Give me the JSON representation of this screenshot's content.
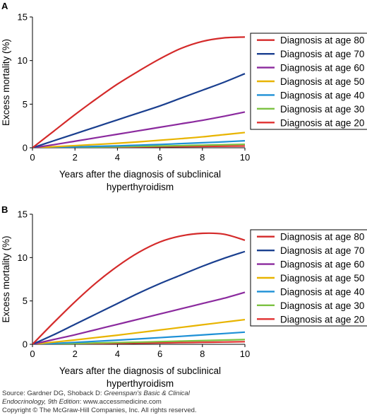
{
  "chart_data": [
    {
      "type": "line",
      "panel_label": "A",
      "xlabel_lines": [
        "Years after the diagnosis of subclinical",
        "hyperthyroidism"
      ],
      "ylabel": "Excess mortality (%)",
      "xlim": [
        0,
        10
      ],
      "ylim": [
        0,
        15
      ],
      "x_ticks": [
        0,
        2,
        4,
        6,
        8,
        10
      ],
      "y_ticks": [
        0,
        5,
        10,
        15
      ],
      "legend_position": "right",
      "series": [
        {
          "name": "Diagnosis at age 80",
          "color": "#d42a2a",
          "x": [
            0,
            1,
            2,
            3,
            4,
            5,
            6,
            7,
            8,
            9,
            10
          ],
          "y": [
            0,
            1.9,
            3.8,
            5.6,
            7.3,
            8.8,
            10.2,
            11.4,
            12.2,
            12.6,
            12.7
          ]
        },
        {
          "name": "Diagnosis at age 70",
          "color": "#1a3f8f",
          "x": [
            0,
            1,
            2,
            3,
            4,
            5,
            6,
            7,
            8,
            9,
            10
          ],
          "y": [
            0,
            0.8,
            1.6,
            2.4,
            3.2,
            4.0,
            4.8,
            5.7,
            6.6,
            7.5,
            8.5
          ]
        },
        {
          "name": "Diagnosis at age 60",
          "color": "#8b2a9e",
          "x": [
            0,
            1,
            2,
            3,
            4,
            5,
            6,
            7,
            8,
            9,
            10
          ],
          "y": [
            0,
            0.35,
            0.75,
            1.15,
            1.55,
            1.95,
            2.35,
            2.75,
            3.15,
            3.6,
            4.1
          ]
        },
        {
          "name": "Diagnosis at age 50",
          "color": "#e8b400",
          "x": [
            0,
            1,
            2,
            3,
            4,
            5,
            6,
            7,
            8,
            9,
            10
          ],
          "y": [
            0,
            0.12,
            0.25,
            0.38,
            0.52,
            0.68,
            0.86,
            1.05,
            1.25,
            1.5,
            1.75
          ]
        },
        {
          "name": "Diagnosis at age 40",
          "color": "#1e90d6",
          "x": [
            0,
            1,
            2,
            3,
            4,
            5,
            6,
            7,
            8,
            9,
            10
          ],
          "y": [
            0,
            0.05,
            0.1,
            0.16,
            0.22,
            0.3,
            0.38,
            0.48,
            0.58,
            0.68,
            0.8
          ]
        },
        {
          "name": "Diagnosis at age 30",
          "color": "#7cc242",
          "x": [
            0,
            1,
            2,
            3,
            4,
            5,
            6,
            7,
            8,
            9,
            10
          ],
          "y": [
            0,
            0.03,
            0.06,
            0.09,
            0.12,
            0.16,
            0.2,
            0.25,
            0.3,
            0.35,
            0.4
          ]
        },
        {
          "name": "Diagnosis at age 20",
          "color": "#e03030",
          "x": [
            0,
            1,
            2,
            3,
            4,
            5,
            6,
            7,
            8,
            9,
            10
          ],
          "y": [
            0,
            0.02,
            0.04,
            0.06,
            0.08,
            0.1,
            0.12,
            0.14,
            0.16,
            0.18,
            0.2
          ]
        }
      ]
    },
    {
      "type": "line",
      "panel_label": "B",
      "xlabel_lines": [
        "Years after the diagnosis of subclinical",
        "hyperthyroidism"
      ],
      "ylabel": "Excess mortality (%)",
      "xlim": [
        0,
        10
      ],
      "ylim": [
        0,
        15
      ],
      "x_ticks": [
        0,
        2,
        4,
        6,
        8,
        10
      ],
      "y_ticks": [
        0,
        5,
        10,
        15
      ],
      "legend_position": "right",
      "series": [
        {
          "name": "Diagnosis at age 80",
          "color": "#d42a2a",
          "x": [
            0,
            1,
            2,
            3,
            4,
            5,
            6,
            7,
            8,
            9,
            10
          ],
          "y": [
            0,
            2.5,
            4.9,
            7.1,
            9.0,
            10.6,
            11.8,
            12.5,
            12.8,
            12.7,
            12.0
          ]
        },
        {
          "name": "Diagnosis at age 70",
          "color": "#1a3f8f",
          "x": [
            0,
            1,
            2,
            3,
            4,
            5,
            6,
            7,
            8,
            9,
            10
          ],
          "y": [
            0,
            1.1,
            2.3,
            3.5,
            4.7,
            5.9,
            7.0,
            8.0,
            9.0,
            9.9,
            10.7
          ]
        },
        {
          "name": "Diagnosis at age 60",
          "color": "#8b2a9e",
          "x": [
            0,
            1,
            2,
            3,
            4,
            5,
            6,
            7,
            8,
            9,
            10
          ],
          "y": [
            0,
            0.55,
            1.1,
            1.7,
            2.3,
            2.9,
            3.5,
            4.1,
            4.7,
            5.3,
            6.0
          ]
        },
        {
          "name": "Diagnosis at age 50",
          "color": "#e8b400",
          "x": [
            0,
            1,
            2,
            3,
            4,
            5,
            6,
            7,
            8,
            9,
            10
          ],
          "y": [
            0,
            0.25,
            0.5,
            0.78,
            1.05,
            1.35,
            1.65,
            1.95,
            2.25,
            2.55,
            2.85
          ]
        },
        {
          "name": "Diagnosis at age 40",
          "color": "#1e90d6",
          "x": [
            0,
            1,
            2,
            3,
            4,
            5,
            6,
            7,
            8,
            9,
            10
          ],
          "y": [
            0,
            0.1,
            0.22,
            0.35,
            0.48,
            0.62,
            0.77,
            0.92,
            1.08,
            1.24,
            1.4
          ]
        },
        {
          "name": "Diagnosis at age 30",
          "color": "#7cc242",
          "x": [
            0,
            1,
            2,
            3,
            4,
            5,
            6,
            7,
            8,
            9,
            10
          ],
          "y": [
            0,
            0.05,
            0.1,
            0.15,
            0.2,
            0.25,
            0.31,
            0.37,
            0.43,
            0.49,
            0.55
          ]
        },
        {
          "name": "Diagnosis at age 20",
          "color": "#e03030",
          "x": [
            0,
            1,
            2,
            3,
            4,
            5,
            6,
            7,
            8,
            9,
            10
          ],
          "y": [
            0,
            0.02,
            0.05,
            0.08,
            0.11,
            0.14,
            0.17,
            0.2,
            0.23,
            0.26,
            0.3
          ]
        }
      ]
    }
  ],
  "footer": {
    "source_prefix": "Source: Gardner DG, Shoback D: ",
    "source_book": "Greenspan's Basic & Clinical",
    "source_line2_book": "Endocrinology, 9th Edition",
    "source_line2_rest": ": www.accessmedicine.com",
    "copyright": "Copyright © The McGraw-Hill Companies, Inc. All rights reserved."
  }
}
